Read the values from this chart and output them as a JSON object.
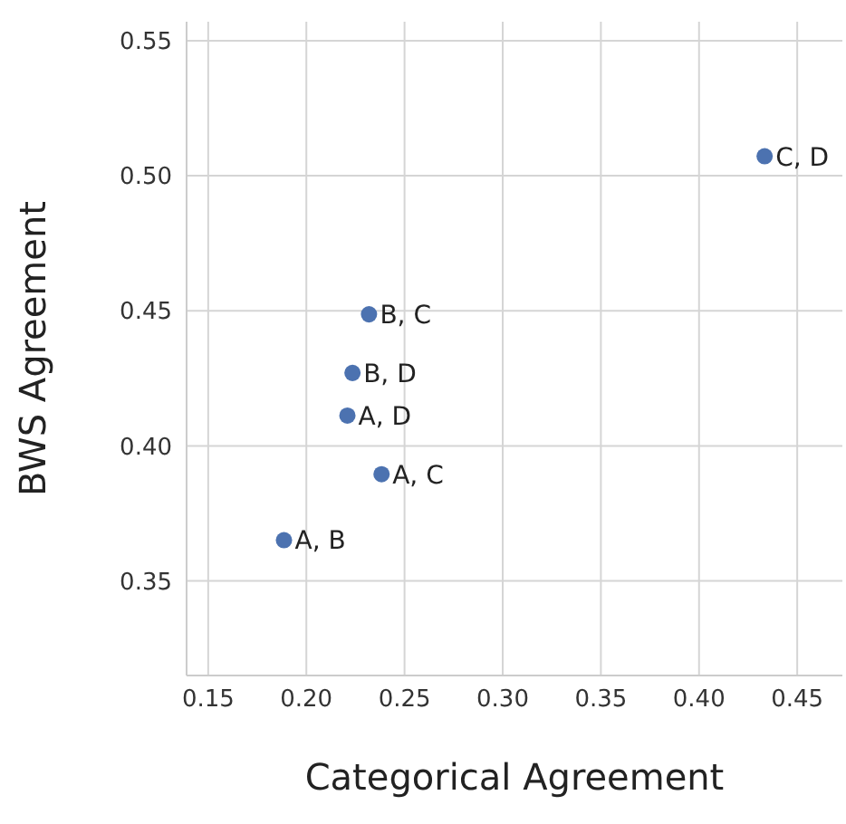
{
  "chart_data": {
    "type": "scatter",
    "xlabel": "Categorical Agreement",
    "ylabel": "BWS Agreement",
    "x": [
      0.1886,
      0.2383,
      0.2209,
      0.2319,
      0.2235,
      0.4334
    ],
    "values": [
      0.3651,
      0.3895,
      0.4112,
      0.4487,
      0.427,
      0.5072
    ],
    "color": "#4c72b0",
    "xlim": [
      0.139,
      0.473
    ],
    "xticks": [
      0.15,
      {
        "value": 0.2,
        "label": "0.20"
      },
      0.25,
      {
        "value": 0.3,
        "label": "0.30"
      },
      0.35,
      {
        "value": 0.4,
        "label": "0.40"
      },
      0.45
    ],
    "ylim": [
      0.315,
      0.557
    ],
    "yticks": [
      0.35,
      {
        "value": 0.4,
        "label": "0.40"
      },
      0.45,
      {
        "value": 0.5,
        "label": "0.50"
      },
      0.55
    ],
    "grid": true,
    "marker": "circle",
    "annotations": [
      {
        "text": "A, B",
        "x": 0.1886,
        "y": 0.3651
      },
      {
        "text": "A, C",
        "x": 0.2383,
        "y": 0.3895
      },
      {
        "text": "A, D",
        "x": 0.2209,
        "y": 0.4112
      },
      {
        "text": "B, C",
        "x": 0.2319,
        "y": 0.4487
      },
      {
        "text": "B, D",
        "x": 0.2235,
        "y": 0.427
      },
      {
        "text": "C, D",
        "x": 0.4334,
        "y": 0.5072
      }
    ]
  }
}
